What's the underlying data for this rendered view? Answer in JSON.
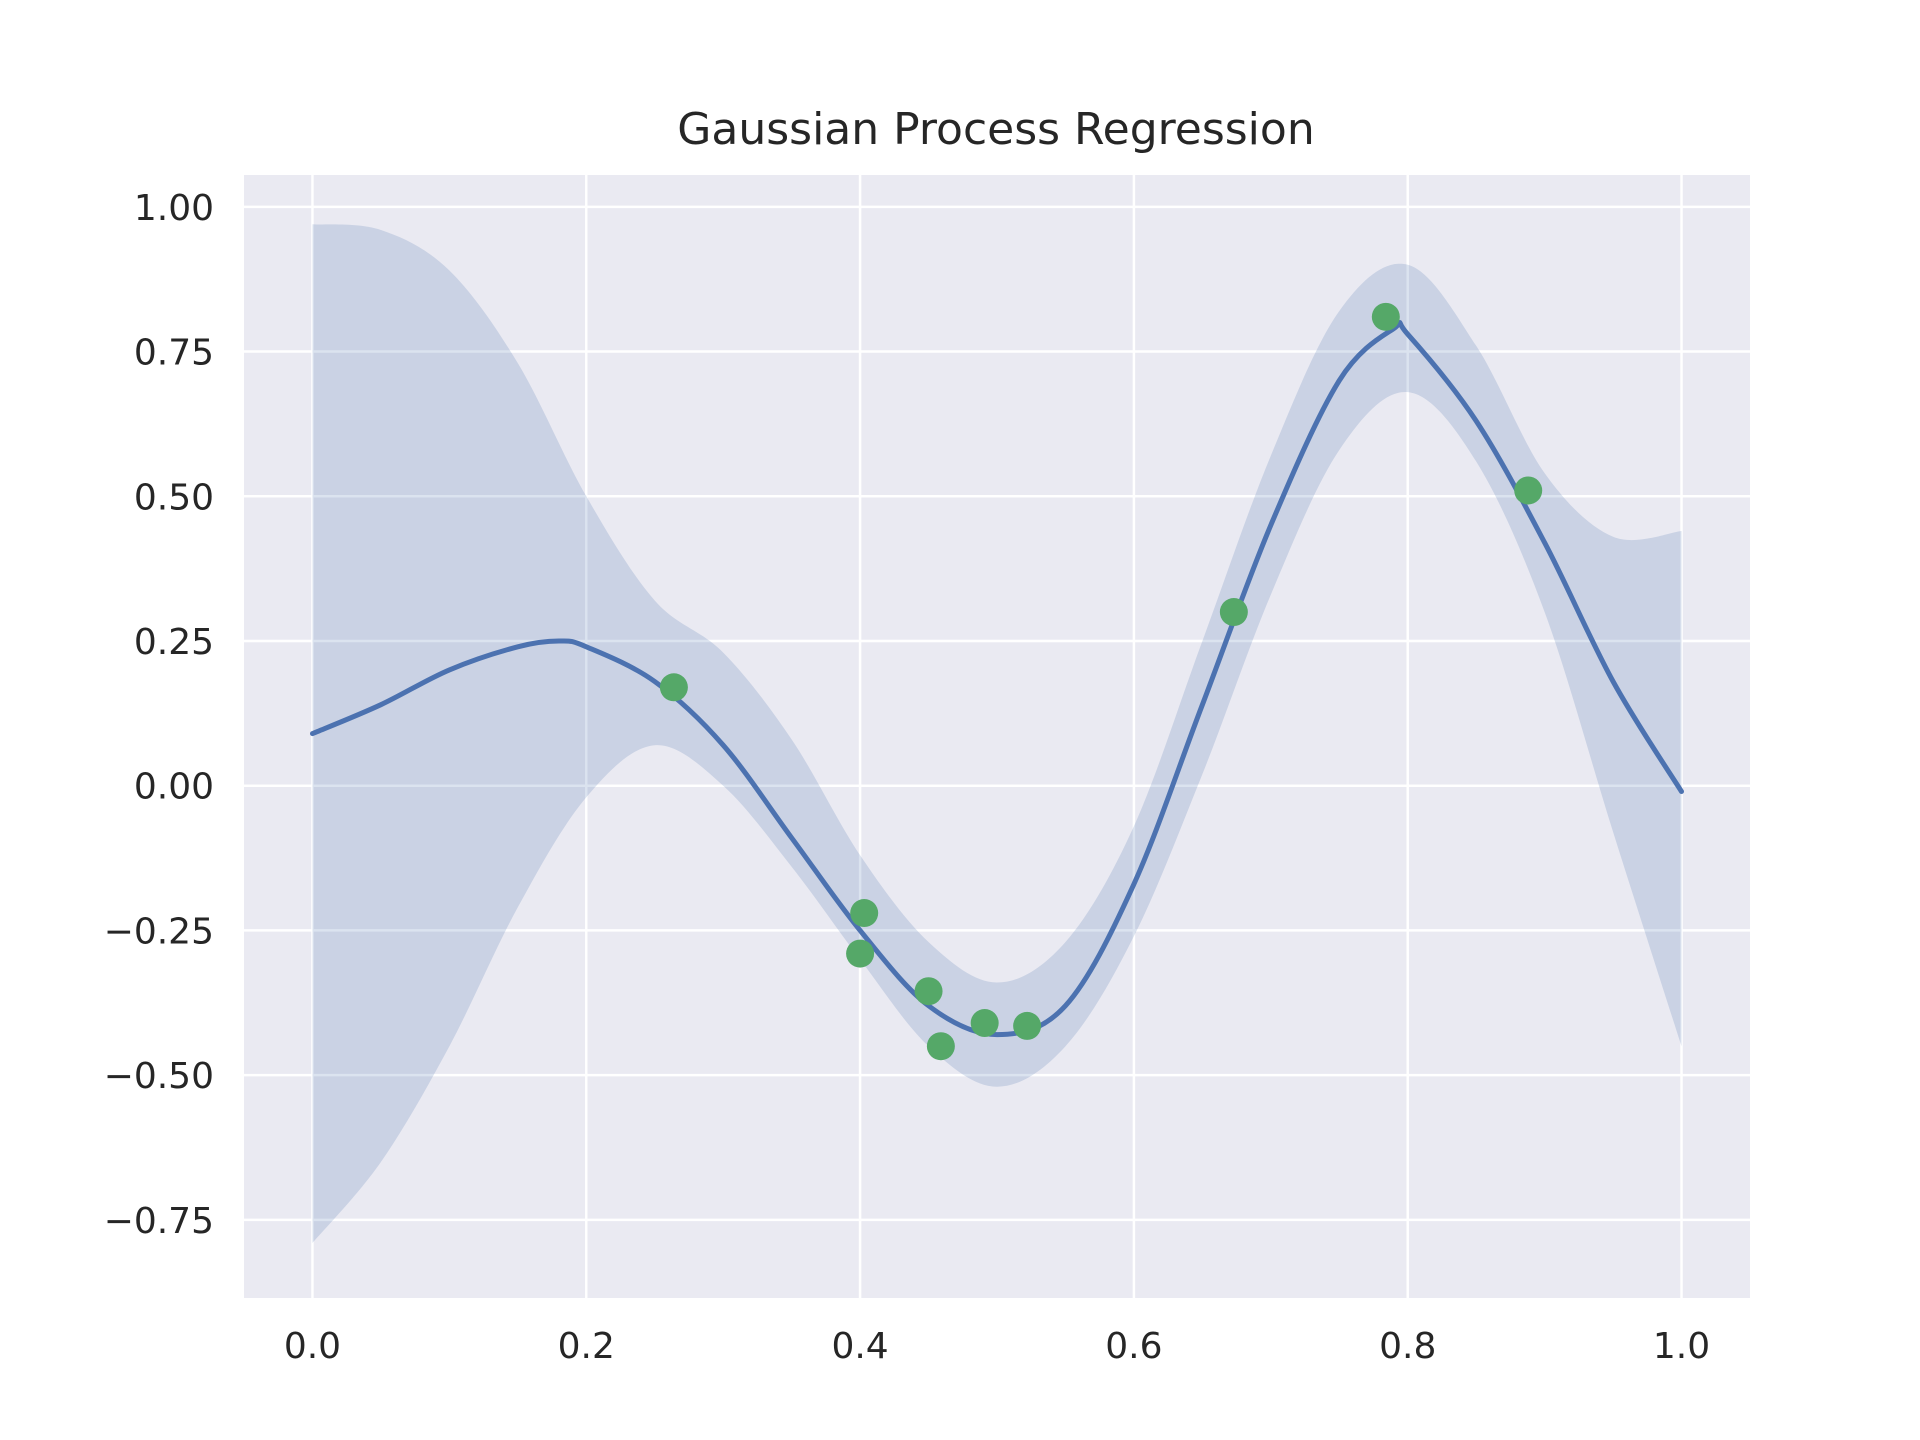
{
  "chart_data": {
    "type": "line",
    "title": "Gaussian Process Regression",
    "xlabel": "",
    "ylabel": "",
    "xlim": [
      -0.05,
      1.05
    ],
    "ylim": [
      -0.885,
      1.055
    ],
    "xticks": [
      0.0,
      0.2,
      0.4,
      0.6,
      0.8,
      1.0
    ],
    "xtick_labels": [
      "0.0",
      "0.2",
      "0.4",
      "0.6",
      "0.8",
      "1.0"
    ],
    "yticks": [
      1.0,
      0.75,
      0.5,
      0.25,
      0.0,
      -0.25,
      -0.5,
      -0.75
    ],
    "ytick_labels": [
      "1.00",
      "0.75",
      "0.50",
      "0.25",
      "0.00",
      "−0.25",
      "−0.50",
      "−0.75"
    ],
    "grid": true,
    "legend": "none",
    "colors": {
      "background": "#eaeaf2",
      "grid": "#ffffff",
      "mean_line": "#4c72b0",
      "band_fill": "#4c72b0",
      "points": "#55a868"
    },
    "series": [
      {
        "kind": "line",
        "x": [
          0.0,
          0.05,
          0.1,
          0.15,
          0.18,
          0.2,
          0.25,
          0.3,
          0.35,
          0.4,
          0.45,
          0.5,
          0.55,
          0.6,
          0.65,
          0.7,
          0.75,
          0.79,
          0.8,
          0.85,
          0.9,
          0.95,
          1.0
        ],
        "y": [
          0.09,
          0.14,
          0.2,
          0.24,
          0.25,
          0.24,
          0.18,
          0.07,
          -0.09,
          -0.25,
          -0.38,
          -0.43,
          -0.38,
          -0.17,
          0.14,
          0.45,
          0.7,
          0.79,
          0.78,
          0.63,
          0.42,
          0.18,
          -0.01
        ]
      },
      {
        "kind": "band",
        "x": [
          0.0,
          0.05,
          0.1,
          0.15,
          0.2,
          0.25,
          0.3,
          0.35,
          0.4,
          0.45,
          0.5,
          0.55,
          0.6,
          0.65,
          0.7,
          0.75,
          0.8,
          0.85,
          0.9,
          0.95,
          1.0
        ],
        "lower": [
          -0.79,
          -0.65,
          -0.45,
          -0.21,
          -0.02,
          0.07,
          0.0,
          -0.14,
          -0.3,
          -0.45,
          -0.52,
          -0.45,
          -0.26,
          0.02,
          0.33,
          0.58,
          0.68,
          0.56,
          0.3,
          -0.08,
          -0.45
        ],
        "upper": [
          0.97,
          0.96,
          0.89,
          0.73,
          0.5,
          0.32,
          0.23,
          0.08,
          -0.12,
          -0.27,
          -0.34,
          -0.27,
          -0.07,
          0.25,
          0.57,
          0.82,
          0.9,
          0.76,
          0.54,
          0.43,
          0.44
        ]
      },
      {
        "kind": "scatter",
        "x": [
          0.264,
          0.403,
          0.4,
          0.45,
          0.459,
          0.491,
          0.522,
          0.673,
          0.784,
          0.888
        ],
        "y": [
          0.17,
          -0.22,
          -0.29,
          -0.355,
          -0.45,
          -0.41,
          -0.415,
          0.3,
          0.81,
          0.51
        ]
      }
    ]
  }
}
